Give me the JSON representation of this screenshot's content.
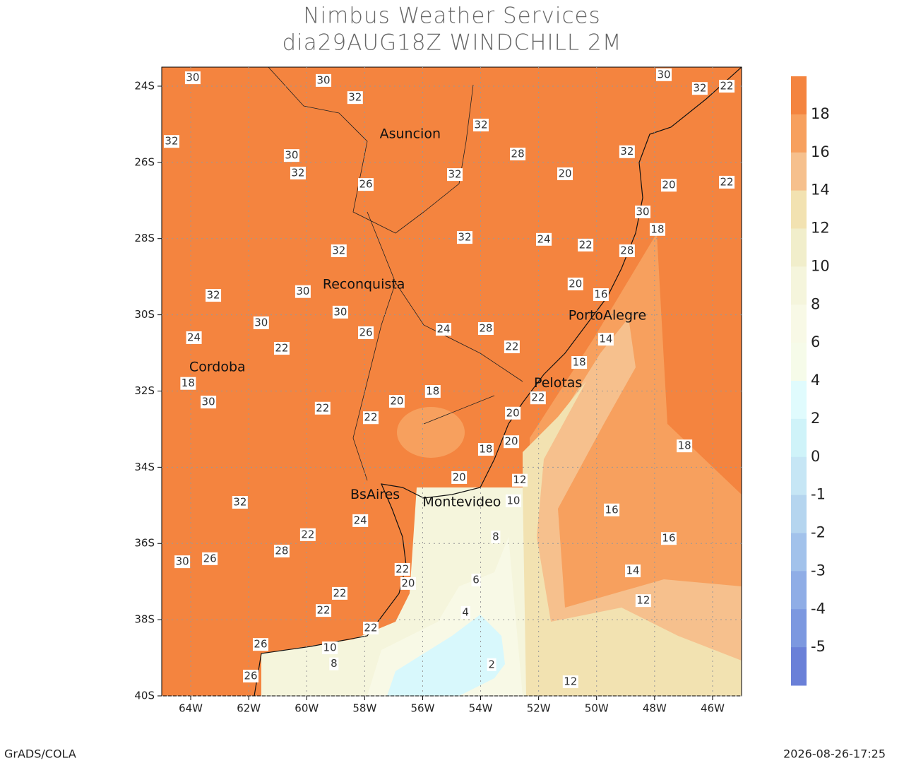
{
  "header": {
    "title": "Nimbus Weather Services",
    "subtitle": "dia29AUG18Z WINDCHILL 2M"
  },
  "map": {
    "xlim": [
      -65,
      -45
    ],
    "ylim": [
      -40,
      -23.5
    ],
    "xticks": [
      {
        "value": -64,
        "label": "64W"
      },
      {
        "value": -62,
        "label": "62W"
      },
      {
        "value": -60,
        "label": "60W"
      },
      {
        "value": -58,
        "label": "58W"
      },
      {
        "value": -56,
        "label": "56W"
      },
      {
        "value": -54,
        "label": "54W"
      },
      {
        "value": -52,
        "label": "52W"
      },
      {
        "value": -50,
        "label": "50W"
      },
      {
        "value": -48,
        "label": "48W"
      },
      {
        "value": -46,
        "label": "46W"
      }
    ],
    "yticks": [
      {
        "value": -24,
        "label": "24S"
      },
      {
        "value": -26,
        "label": "26S"
      },
      {
        "value": -28,
        "label": "28S"
      },
      {
        "value": -30,
        "label": "30S"
      },
      {
        "value": -32,
        "label": "32S"
      },
      {
        "value": -34,
        "label": "34S"
      },
      {
        "value": -36,
        "label": "36S"
      },
      {
        "value": -38,
        "label": "38S"
      },
      {
        "value": -40,
        "label": "40S"
      }
    ],
    "cities": [
      {
        "label": "Asuncion",
        "lon": -56.43,
        "lat": -25.26
      },
      {
        "label": "Reconquista",
        "lon": -58.03,
        "lat": -29.21
      },
      {
        "label": "Cordoba",
        "lon": -63.08,
        "lat": -31.38
      },
      {
        "label": "PortoAlegre",
        "lon": -49.63,
        "lat": -30.03
      },
      {
        "label": "Pelotas",
        "lon": -51.33,
        "lat": -31.8
      },
      {
        "label": "BsAires",
        "lon": -57.64,
        "lat": -34.73
      },
      {
        "label": "Montevideo",
        "lon": -54.65,
        "lat": -34.92
      }
    ],
    "contour_labels": [
      {
        "value": 30,
        "lon": -59.42,
        "lat": -23.85
      },
      {
        "value": 32,
        "lon": -58.33,
        "lat": -24.3
      },
      {
        "value": 30,
        "lon": -63.93,
        "lat": -23.78
      },
      {
        "value": 32,
        "lon": -64.66,
        "lat": -25.45
      },
      {
        "value": 30,
        "lon": -60.52,
        "lat": -25.82
      },
      {
        "value": 32,
        "lon": -60.3,
        "lat": -26.28
      },
      {
        "value": 26,
        "lon": -57.96,
        "lat": -26.58
      },
      {
        "value": 32,
        "lon": -54.89,
        "lat": -26.32
      },
      {
        "value": 32,
        "lon": -53.99,
        "lat": -25.02
      },
      {
        "value": 28,
        "lon": -52.72,
        "lat": -25.78
      },
      {
        "value": 20,
        "lon": -51.09,
        "lat": -26.3
      },
      {
        "value": 32,
        "lon": -48.95,
        "lat": -25.72
      },
      {
        "value": 30,
        "lon": -47.68,
        "lat": -23.7
      },
      {
        "value": 32,
        "lon": -46.44,
        "lat": -24.06
      },
      {
        "value": 22,
        "lon": -45.51,
        "lat": -24.0
      },
      {
        "value": 20,
        "lon": -47.51,
        "lat": -26.6
      },
      {
        "value": 22,
        "lon": -45.51,
        "lat": -26.52
      },
      {
        "value": 30,
        "lon": -48.41,
        "lat": -27.3
      },
      {
        "value": 18,
        "lon": -47.9,
        "lat": -27.76
      },
      {
        "value": 32,
        "lon": -54.55,
        "lat": -27.97
      },
      {
        "value": 32,
        "lon": -58.89,
        "lat": -28.32
      },
      {
        "value": 32,
        "lon": -63.22,
        "lat": -29.49
      },
      {
        "value": 30,
        "lon": -60.13,
        "lat": -29.39
      },
      {
        "value": 30,
        "lon": -58.84,
        "lat": -29.93
      },
      {
        "value": 26,
        "lon": -57.96,
        "lat": -30.47
      },
      {
        "value": 24,
        "lon": -55.28,
        "lat": -30.38
      },
      {
        "value": 28,
        "lon": -53.82,
        "lat": -30.36
      },
      {
        "value": 22,
        "lon": -52.92,
        "lat": -30.84
      },
      {
        "value": 22,
        "lon": -60.86,
        "lat": -30.88
      },
      {
        "value": 30,
        "lon": -61.57,
        "lat": -30.21
      },
      {
        "value": 24,
        "lon": -63.89,
        "lat": -30.6
      },
      {
        "value": 18,
        "lon": -64.09,
        "lat": -31.8
      },
      {
        "value": 30,
        "lon": -63.39,
        "lat": -32.29
      },
      {
        "value": 18,
        "lon": -55.65,
        "lat": -32.01
      },
      {
        "value": 20,
        "lon": -56.89,
        "lat": -32.27
      },
      {
        "value": 22,
        "lon": -57.79,
        "lat": -32.7
      },
      {
        "value": 22,
        "lon": -59.45,
        "lat": -32.45
      },
      {
        "value": 20,
        "lon": -52.89,
        "lat": -32.58
      },
      {
        "value": 20,
        "lon": -52.94,
        "lat": -33.33
      },
      {
        "value": 18,
        "lon": -53.82,
        "lat": -33.53
      },
      {
        "value": 20,
        "lon": -54.74,
        "lat": -34.27
      },
      {
        "value": 12,
        "lon": -52.65,
        "lat": -34.34
      },
      {
        "value": 10,
        "lon": -52.87,
        "lat": -34.88
      },
      {
        "value": 8,
        "lon": -53.48,
        "lat": -35.83
      },
      {
        "value": 6,
        "lon": -54.16,
        "lat": -36.96
      },
      {
        "value": 4,
        "lon": -54.52,
        "lat": -37.81
      },
      {
        "value": 2,
        "lon": -53.62,
        "lat": -39.18
      },
      {
        "value": 12,
        "lon": -50.9,
        "lat": -39.63
      },
      {
        "value": 16,
        "lon": -49.48,
        "lat": -35.12
      },
      {
        "value": 16,
        "lon": -47.51,
        "lat": -35.87
      },
      {
        "value": 14,
        "lon": -48.75,
        "lat": -36.72
      },
      {
        "value": 12,
        "lon": -48.39,
        "lat": -37.5
      },
      {
        "value": 18,
        "lon": -46.97,
        "lat": -33.44
      },
      {
        "value": 32,
        "lon": -62.3,
        "lat": -34.92
      },
      {
        "value": 24,
        "lon": -58.15,
        "lat": -35.4
      },
      {
        "value": 22,
        "lon": -59.96,
        "lat": -35.77
      },
      {
        "value": 26,
        "lon": -63.34,
        "lat": -36.4
      },
      {
        "value": 30,
        "lon": -64.29,
        "lat": -36.48
      },
      {
        "value": 28,
        "lon": -60.86,
        "lat": -36.2
      },
      {
        "value": 22,
        "lon": -58.86,
        "lat": -37.31
      },
      {
        "value": 22,
        "lon": -59.42,
        "lat": -37.76
      },
      {
        "value": 22,
        "lon": -57.79,
        "lat": -38.22
      },
      {
        "value": 10,
        "lon": -59.2,
        "lat": -38.74
      },
      {
        "value": 8,
        "lon": -59.06,
        "lat": -39.16
      },
      {
        "value": 20,
        "lon": -56.5,
        "lat": -37.05
      },
      {
        "value": 22,
        "lon": -56.7,
        "lat": -36.68
      },
      {
        "value": 26,
        "lon": -61.59,
        "lat": -38.65
      },
      {
        "value": 26,
        "lon": -61.93,
        "lat": -39.48
      },
      {
        "value": 20,
        "lon": -50.73,
        "lat": -29.19
      },
      {
        "value": 16,
        "lon": -49.85,
        "lat": -29.47
      },
      {
        "value": 14,
        "lon": -49.68,
        "lat": -30.64
      },
      {
        "value": 18,
        "lon": -50.6,
        "lat": -31.25
      },
      {
        "value": 22,
        "lon": -52.02,
        "lat": -32.18
      },
      {
        "value": 24,
        "lon": -51.82,
        "lat": -28.02
      },
      {
        "value": 22,
        "lon": -50.38,
        "lat": -28.17
      },
      {
        "value": 28,
        "lon": -48.95,
        "lat": -28.32
      }
    ]
  },
  "colorbar": {
    "levels": [
      18,
      16,
      14,
      12,
      10,
      8,
      6,
      4,
      2,
      0,
      -1,
      -2,
      -3,
      -4,
      -5
    ],
    "colors": [
      "#f4843f",
      "#f7a05e",
      "#f6c08d",
      "#f2e2b1",
      "#f1eecb",
      "#f5f5dc",
      "#f8f9e6",
      "#f6fbe9",
      "#e0fbfd",
      "#cff3f9",
      "#c6e6f5",
      "#b5d5ef",
      "#a2c2eb",
      "#8fade6",
      "#7c98e0",
      "#6a80d8"
    ]
  },
  "footer": {
    "left": "GrADS/COLA",
    "right": "2026-08-26-17:25"
  }
}
